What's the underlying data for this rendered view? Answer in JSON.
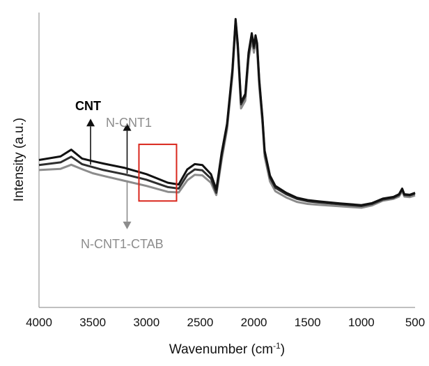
{
  "chart_data": {
    "type": "line",
    "xlabel": "Wavenumber (cm",
    "xlabel_sup": "-1",
    "xlabel_end": ")",
    "ylabel": "Intensity (a.u.)",
    "xlim": [
      4000,
      500
    ],
    "x_reversed": true,
    "xticks": [
      4000,
      3500,
      3000,
      2500,
      2000,
      1500,
      1000,
      500
    ],
    "ylim": [
      0,
      100
    ],
    "y_ticks_shown": false,
    "grid": false,
    "series": [
      {
        "name": "CNT",
        "color": "#111111",
        "x": [
          4000,
          3800,
          3700,
          3600,
          3500,
          3400,
          3200,
          3000,
          2800,
          2700,
          2620,
          2550,
          2480,
          2400,
          2350,
          2300,
          2250,
          2200,
          2170,
          2150,
          2120,
          2080,
          2050,
          2020,
          2000,
          1985,
          1970,
          1950,
          1920,
          1900,
          1850,
          1800,
          1700,
          1600,
          1500,
          1400,
          1200,
          1000,
          900,
          800,
          700,
          650,
          620,
          600,
          550,
          500
        ],
        "y": [
          50.0,
          51.2,
          53.5,
          50.5,
          49.6,
          48.8,
          47.3,
          45.2,
          42.3,
          41.7,
          46.8,
          48.6,
          48.3,
          45.2,
          40.0,
          52.5,
          62.3,
          80.6,
          97.8,
          89.6,
          69.6,
          72.4,
          86.4,
          93.0,
          88.6,
          92.3,
          89.6,
          77.1,
          64.4,
          53.2,
          44.7,
          41.2,
          38.9,
          37.2,
          36.4,
          36.0,
          35.3,
          34.7,
          35.4,
          36.9,
          37.5,
          38.4,
          40.3,
          38.4,
          38.2,
          38.9
        ]
      },
      {
        "name": "N-CNT1",
        "color": "#2e2e2e",
        "x": [
          4000,
          3800,
          3700,
          3600,
          3500,
          3400,
          3200,
          3000,
          2800,
          2700,
          2620,
          2550,
          2480,
          2400,
          2350,
          2300,
          2250,
          2200,
          2170,
          2150,
          2120,
          2080,
          2050,
          2020,
          2000,
          1985,
          1970,
          1950,
          1920,
          1900,
          1850,
          1800,
          1700,
          1600,
          1500,
          1400,
          1200,
          1000,
          900,
          800,
          700,
          650,
          620,
          600,
          550,
          500
        ],
        "y": [
          48.3,
          49.2,
          51.1,
          48.6,
          47.6,
          46.6,
          45.1,
          43.3,
          40.8,
          40.3,
          45.0,
          46.8,
          46.5,
          43.7,
          38.9,
          51.5,
          61.6,
          79.9,
          97.2,
          88.9,
          68.9,
          71.6,
          85.7,
          92.3,
          87.9,
          91.6,
          88.9,
          76.4,
          63.7,
          52.5,
          44.0,
          40.6,
          38.4,
          36.8,
          36.0,
          35.6,
          35.0,
          34.4,
          35.1,
          36.6,
          37.2,
          38.1,
          40.0,
          38.1,
          38.0,
          38.6
        ]
      },
      {
        "name": "N-CNT1-CTAB",
        "color": "#8c8c8c",
        "x": [
          4000,
          3800,
          3700,
          3600,
          3500,
          3400,
          3200,
          3000,
          2800,
          2700,
          2620,
          2550,
          2480,
          2400,
          2350,
          2300,
          2250,
          2200,
          2170,
          2150,
          2120,
          2080,
          2050,
          2020,
          2000,
          1985,
          1970,
          1950,
          1920,
          1900,
          1850,
          1800,
          1700,
          1600,
          1500,
          1400,
          1200,
          1000,
          900,
          800,
          700,
          650,
          620,
          600,
          550,
          500
        ],
        "y": [
          46.6,
          47.0,
          48.4,
          46.9,
          45.5,
          44.6,
          42.9,
          41.2,
          39.2,
          39.0,
          43.1,
          45.0,
          44.8,
          42.3,
          38.1,
          50.1,
          60.3,
          78.4,
          95.6,
          87.4,
          67.5,
          70.1,
          84.1,
          90.6,
          86.4,
          90.0,
          87.3,
          74.8,
          62.1,
          51.1,
          42.7,
          39.4,
          37.3,
          35.8,
          35.1,
          34.8,
          34.3,
          33.8,
          34.6,
          36.2,
          36.8,
          37.6,
          39.4,
          37.6,
          37.4,
          38.0
        ]
      }
    ],
    "annotations": {
      "labels": [
        {
          "text": "CNT",
          "color": "#000000",
          "bold": true
        },
        {
          "text": "N-CNT1",
          "color": "#8c8c8c",
          "bold": false
        },
        {
          "text": "N-CNT1-CTAB",
          "color": "#8c8c8c",
          "bold": false
        }
      ],
      "arrows": [
        {
          "x": 3520,
          "y_from": 48.4,
          "y_to": 64.0,
          "color": "#111111"
        },
        {
          "x": 3180,
          "y_from": 45.4,
          "y_to": 62.5,
          "color": "#111111"
        },
        {
          "x": 3180,
          "y_from": 43.1,
          "y_to": 26.5,
          "color": "#8c8c8c"
        }
      ],
      "highlight_box": {
        "x_range": [
          3070,
          2720
        ],
        "y_range": [
          36.1,
          55.3
        ],
        "color": "#d9261c"
      }
    }
  }
}
